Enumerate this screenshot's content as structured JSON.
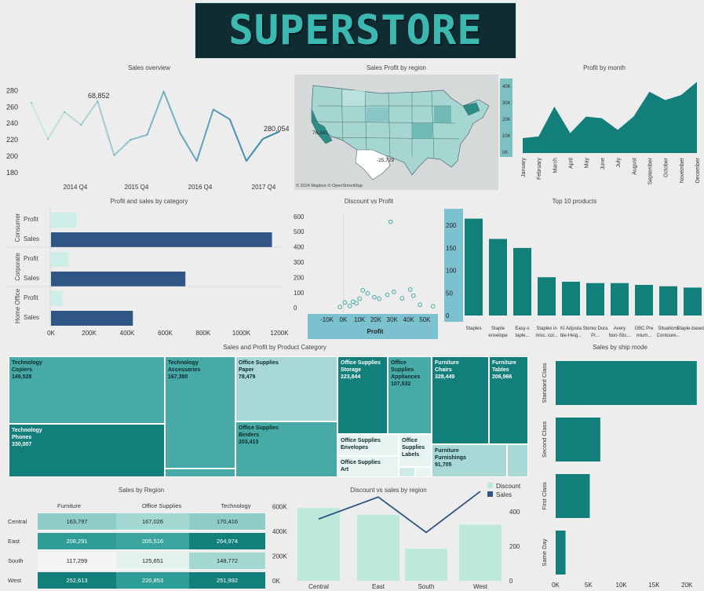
{
  "logo": {
    "text": "SUPERSTORE"
  },
  "panels": {
    "sales_overview": "Sales overview",
    "sales_profit_region": "Sales Profit by region",
    "profit_by_month": "Profit by month",
    "profit_sales_category": "Profit and sales by category",
    "discount_vs_profit": "Discount vs Profit",
    "top10": "Top 10 products",
    "treemap": "Sales and Profit by Product Category",
    "ship_mode": "Sales by ship mode",
    "sales_by_region": "Sales by Region",
    "discount_sales_region": "Discount vs sales by region"
  },
  "map": {
    "attribution": "© 2024 Mapbox © OpenStreetMap",
    "label_ca": "76,381",
    "label_tx": "-25,729",
    "legend_ticks": [
      "40K",
      "30K",
      "20K",
      "10K",
      "0K"
    ]
  },
  "colors": {
    "dark_teal": "#137f7a",
    "teal": "#47aaa7",
    "light_teal": "#a8d8d5",
    "pale": "#cdeee6",
    "navy": "#2f5684",
    "mint": "#bde9dc"
  },
  "chart_data": [
    {
      "id": "sales_overview",
      "type": "line",
      "title": "Sales overview",
      "x_ticks": [
        "2014 Q4",
        "2015 Q4",
        "2016 Q4",
        "2017 Q4"
      ],
      "y_ticks": [
        "280",
        "260",
        "240",
        "220",
        "200",
        "180"
      ],
      "ylim": [
        175,
        290
      ],
      "series": [
        {
          "values": [
            265,
            221,
            254,
            238,
            267,
            201,
            220,
            226,
            279,
            228,
            194,
            257,
            245,
            194,
            221,
            230
          ]
        }
      ],
      "annotations": [
        "68,852",
        "280,054"
      ]
    },
    {
      "id": "profit_by_month",
      "type": "area",
      "title": "Profit by month",
      "categories": [
        "January",
        "February",
        "March",
        "April",
        "May",
        "June",
        "July",
        "August",
        "September",
        "October",
        "November",
        "December"
      ],
      "values": [
        9,
        10,
        28,
        12,
        22,
        21,
        14,
        22,
        37,
        32,
        35,
        43
      ],
      "ylim": [
        0,
        45
      ]
    },
    {
      "id": "profit_sales_category",
      "type": "bar",
      "title": "Profit and sales by category",
      "groups": [
        "Consumer",
        "Corporate",
        "Home Office"
      ],
      "measures": [
        "Profit",
        "Sales"
      ],
      "values": {
        "Consumer": [
          134000,
          1161000
        ],
        "Corporate": [
          92000,
          706000
        ],
        "Home Office": [
          60000,
          430000
        ]
      },
      "x_ticks": [
        "0K",
        "200K",
        "400K",
        "600K",
        "800K",
        "1000K",
        "1200K"
      ],
      "xlim": [
        0,
        1200000
      ]
    },
    {
      "id": "discount_vs_profit",
      "type": "scatter",
      "title": "Discount vs Profit",
      "xlabel": "Profit",
      "x_ticks": [
        "-10K",
        "0K",
        "10K",
        "20K",
        "30K",
        "40K",
        "50K"
      ],
      "y_ticks": [
        "600",
        "500",
        "400",
        "300",
        "200",
        "100",
        "0"
      ],
      "xlim": [
        -17000,
        58000
      ],
      "ylim": [
        -30,
        630
      ],
      "points": [
        [
          29000,
          565
        ],
        [
          -2000,
          5
        ],
        [
          1000,
          35
        ],
        [
          4000,
          12
        ],
        [
          6000,
          40
        ],
        [
          8000,
          30
        ],
        [
          10000,
          60
        ],
        [
          12000,
          115
        ],
        [
          15000,
          95
        ],
        [
          19000,
          70
        ],
        [
          22000,
          60
        ],
        [
          27000,
          85
        ],
        [
          31000,
          105
        ],
        [
          36000,
          62
        ],
        [
          41000,
          120
        ],
        [
          43000,
          80
        ],
        [
          47000,
          20
        ],
        [
          55000,
          10
        ]
      ]
    },
    {
      "id": "top10",
      "type": "bar",
      "title": "Top 10 products",
      "categories": [
        "Staples",
        "Staple envelope",
        "Easy-s taple...",
        "Staples in misc. col...",
        "KI Adjusta ble-Heig...",
        "Storex Dura Pr...",
        "Avery Non-Stic...",
        "GBC Pre mium...",
        "Situations Contoure...",
        "Staple-based..."
      ],
      "values": [
        215,
        170,
        150,
        85,
        75,
        72,
        72,
        68,
        65,
        62
      ],
      "y_ticks": [
        "200",
        "150",
        "100",
        "50",
        "0"
      ],
      "ylim": [
        0,
        230
      ]
    },
    {
      "id": "treemap",
      "type": "heatmap",
      "title": "Sales and Profit by Product Category",
      "cells": [
        {
          "l1": "Technology",
          "l2": "Copiers",
          "v": "149,528"
        },
        {
          "l1": "Technology",
          "l2": "Accessories",
          "v": "167,380"
        },
        {
          "l1": "Technology",
          "l2": "Phones",
          "v": "330,007"
        },
        {
          "l1": "Office Supplies",
          "l2": "Paper",
          "v": "78,479"
        },
        {
          "l1": "Office Supplies",
          "l2": "Binders",
          "v": "203,413"
        },
        {
          "l1": "Office Supplies",
          "l2": "Storage",
          "v": "223,844"
        },
        {
          "l1": "Office Supplies",
          "l2": "Appliances",
          "v": "107,532"
        },
        {
          "l1": "Office Supplies",
          "l2": "Envelopes",
          "v": ""
        },
        {
          "l1": "Office Supplies",
          "l2": "Labels",
          "v": ""
        },
        {
          "l1": "Office Supplies",
          "l2": "Art",
          "v": ""
        },
        {
          "l1": "Furniture",
          "l2": "Chairs",
          "v": "328,449"
        },
        {
          "l1": "Furniture",
          "l2": "Tables",
          "v": "206,966"
        },
        {
          "l1": "Furniture",
          "l2": "Furnishings",
          "v": "91,705"
        }
      ]
    },
    {
      "id": "ship_mode",
      "type": "bar",
      "title": "Sales by ship mode",
      "categories": [
        "Standard Class",
        "Second Class",
        "First Class",
        "Same Day"
      ],
      "values": [
        21500,
        6800,
        5200,
        1500
      ],
      "x_ticks": [
        "0K",
        "5K",
        "10K",
        "15K",
        "20K"
      ],
      "xlim": [
        0,
        22000
      ]
    },
    {
      "id": "sales_by_region",
      "type": "table",
      "title": "Sales by Region",
      "columns": [
        "Furniture",
        "Office Supplies",
        "Technology"
      ],
      "rows": [
        {
          "name": "Central",
          "values": [
            "163,797",
            "167,026",
            "170,416"
          ]
        },
        {
          "name": "East",
          "values": [
            "208,291",
            "205,516",
            "264,974"
          ]
        },
        {
          "name": "South",
          "values": [
            "117,299",
            "125,651",
            "148,772"
          ]
        },
        {
          "name": "West",
          "values": [
            "252,613",
            "220,853",
            "251,992"
          ]
        }
      ]
    },
    {
      "id": "discount_sales_region",
      "type": "bar",
      "title": "Discont vs sales by region",
      "categories": [
        "Central",
        "East",
        "South",
        "West"
      ],
      "series": [
        {
          "name": "Discount",
          "values": [
            590000,
            535000,
            260000,
            455000
          ]
        },
        {
          "name": "Sales",
          "values": [
            501000,
            679000,
            392000,
            725000
          ]
        }
      ],
      "y_ticks_left": [
        "600K",
        "400K",
        "200K",
        "0K"
      ],
      "y_ticks_right": [
        "400",
        "200",
        "0"
      ],
      "ylim": [
        0,
        700000
      ]
    }
  ]
}
